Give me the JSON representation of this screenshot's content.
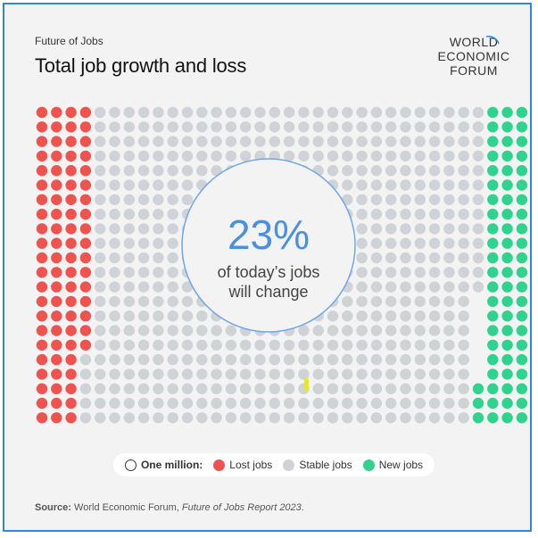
{
  "header": {
    "kicker": "Future of Jobs",
    "title": "Total job growth and loss",
    "logo_lines": [
      "WORLD",
      "ECONOMIC",
      "FORUM"
    ]
  },
  "callout": {
    "value": "23%",
    "line1": "of today’s jobs",
    "line2": "will change"
  },
  "legend": {
    "unit_label": "One million:",
    "lost_label": "Lost jobs",
    "stable_label": "Stable jobs",
    "new_label": "New jobs"
  },
  "source": {
    "prefix": "Source:",
    "text": "World Economic Forum,",
    "report": "Future of Jobs Report 2023",
    "suffix": "."
  },
  "colors": {
    "lost": "#ef5350",
    "stable": "#cfd2d6",
    "new": "#2fd38d",
    "circle_stroke": "#6fa8e6",
    "callout_text": "#4a90e2",
    "highlight": "#e9ea1a"
  },
  "chart_data": {
    "type": "waffle",
    "unit": "One million",
    "series": [
      {
        "name": "Lost jobs",
        "value": 83
      },
      {
        "name": "Stable jobs",
        "value": 590
      },
      {
        "name": "New jobs",
        "value": 69
      }
    ]
  }
}
